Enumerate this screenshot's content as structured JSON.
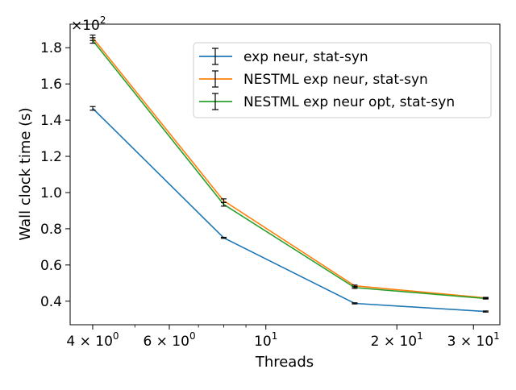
{
  "chart_data": {
    "type": "line",
    "xlabel": "Threads",
    "ylabel": "Wall clock time (s)",
    "y_multiplier_label": "×10",
    "y_multiplier_exp": "2",
    "x_scale": "log",
    "xlim": [
      3.55,
      34.5
    ],
    "ylim": [
      0.27,
      1.93
    ],
    "x": [
      4,
      8,
      16,
      32
    ],
    "x_ticks": [
      {
        "value": 4,
        "base": "4 × 10",
        "exp": "0"
      },
      {
        "value": 6,
        "base": "6 × 10",
        "exp": "0"
      },
      {
        "value": 10,
        "base": "10",
        "exp": "1"
      },
      {
        "value": 20,
        "base": "2 × 10",
        "exp": "1"
      },
      {
        "value": 30,
        "base": "3 × 10",
        "exp": "1"
      }
    ],
    "x_minor_ticks": [
      5,
      7,
      8,
      9
    ],
    "y_ticks": [
      {
        "value": 0.4,
        "label": "0.4"
      },
      {
        "value": 0.6,
        "label": "0.6"
      },
      {
        "value": 0.8,
        "label": "0.8"
      },
      {
        "value": 1.0,
        "label": "1.0"
      },
      {
        "value": 1.2,
        "label": "1.2"
      },
      {
        "value": 1.4,
        "label": "1.4"
      },
      {
        "value": 1.6,
        "label": "1.6"
      },
      {
        "value": 1.8,
        "label": "1.8"
      }
    ],
    "grid": false,
    "legend_position": "top-right",
    "series": [
      {
        "name": "exp neur, stat-syn",
        "color": "#1f77b4",
        "values": [
          1.465,
          0.75,
          0.388,
          0.343
        ],
        "errors": [
          0.01,
          0.003,
          0.003,
          0.003
        ]
      },
      {
        "name": "NESTML exp neur, stat-syn",
        "color": "#ff7f0e",
        "values": [
          1.855,
          0.955,
          0.485,
          0.418
        ],
        "errors": [
          0.015,
          0.01,
          0.004,
          0.003
        ]
      },
      {
        "name": "NESTML exp neur opt, stat-syn",
        "color": "#2ca02c",
        "values": [
          1.84,
          0.935,
          0.475,
          0.415
        ],
        "errors": [
          0.015,
          0.01,
          0.004,
          0.003
        ]
      }
    ]
  }
}
